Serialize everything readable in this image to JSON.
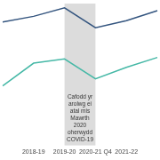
{
  "chart_data": {
    "type": "line",
    "categories": [
      null,
      "2018-19",
      "2019-20",
      "2020-21 Q4",
      "2021-22",
      null
    ],
    "series": [
      {
        "color": "#34557f",
        "values": [
          87,
          91,
          97,
          83,
          88,
          95
        ]
      },
      {
        "color": "#45b8a6",
        "values": [
          42,
          58,
          61,
          47,
          55,
          62
        ]
      }
    ],
    "ylim": [
      0,
      100
    ],
    "tick_labels": "x",
    "grid": false,
    "shaded_region": {
      "from": "2019-20",
      "to": "2020-21 Q4",
      "annotation": "Cafodd yr arolwg ei atal mis Mawrth 2020 oherwydd COVID-19"
    }
  }
}
